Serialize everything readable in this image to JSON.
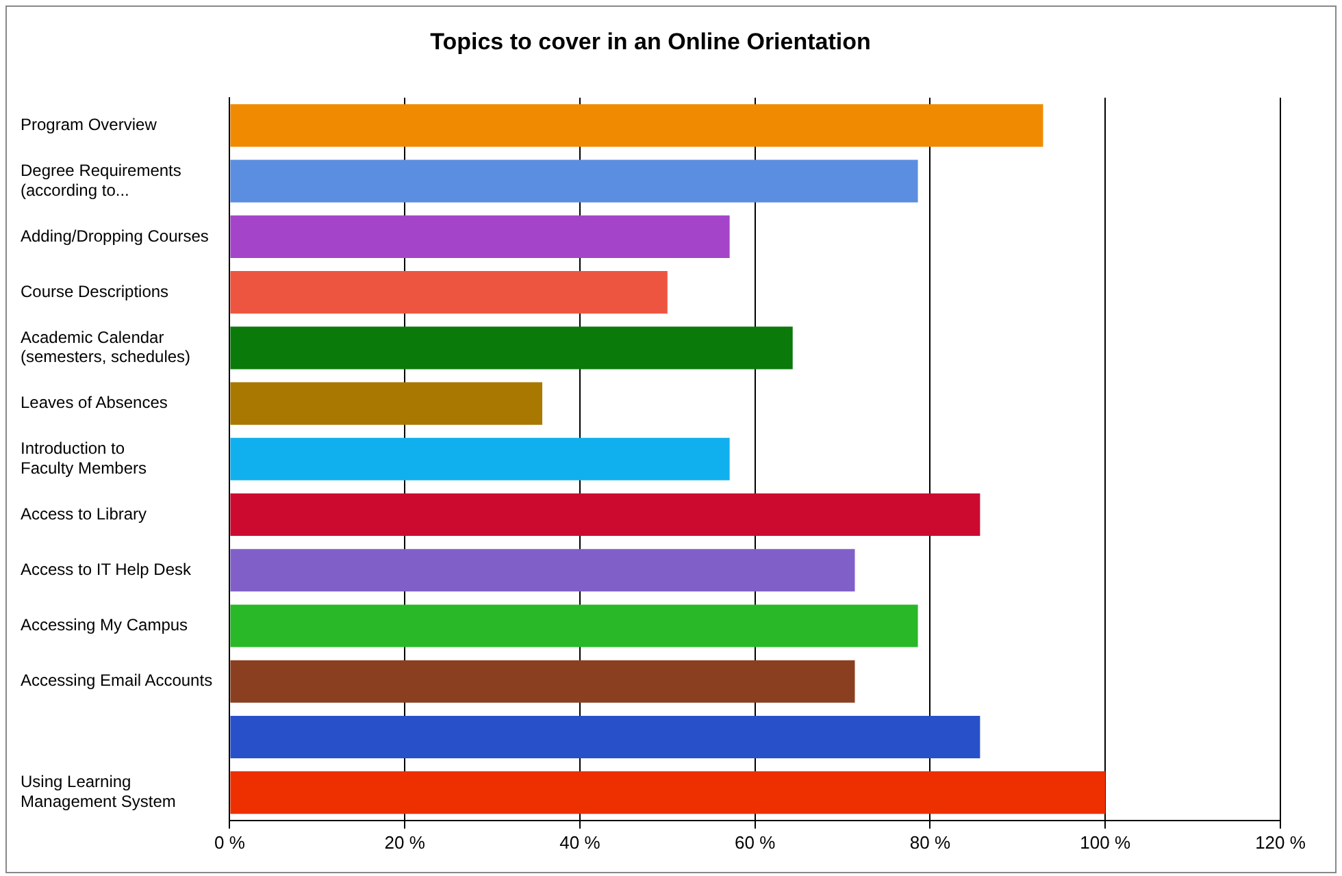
{
  "chart_data": {
    "type": "bar",
    "orientation": "horizontal",
    "title": "Topics to cover in an Online Orientation",
    "categories": [
      "Program Overview",
      "Degree Requirements\n(according to...",
      "Adding/Dropping Courses",
      "Course Descriptions",
      "Academic Calendar\n(semesters, schedules)",
      "Leaves of Absences",
      "Introduction to\nFaculty Members",
      "Access to Library",
      "Access to IT Help Desk",
      "Accessing My Campus",
      "Accessing Email Accounts",
      null,
      "Using Learning\nManagement System"
    ],
    "values": [
      92.9,
      78.6,
      57.1,
      50,
      64.3,
      35.7,
      57.1,
      85.7,
      71.4,
      78.6,
      71.4,
      85.7,
      100
    ],
    "colors": [
      "#f08a00",
      "#5b8ee0",
      "#a444c8",
      "#ee5540",
      "#0a7a0a",
      "#a87800",
      "#10b0ee",
      "#cc0a30",
      "#8060c8",
      "#28b828",
      "#8a4020",
      "#2850c8",
      "#ee3000"
    ],
    "xlim": [
      0,
      120
    ],
    "xticks": [
      {
        "value": 0,
        "label": "0 %"
      },
      {
        "value": 20,
        "label": "20 %"
      },
      {
        "value": 40,
        "label": "40 %"
      },
      {
        "value": 60,
        "label": "60 %"
      },
      {
        "value": 80,
        "label": "80 %"
      },
      {
        "value": 100,
        "label": "100 %"
      },
      {
        "value": 120,
        "label": "120 %"
      }
    ],
    "grid": "x",
    "legend": false
  }
}
